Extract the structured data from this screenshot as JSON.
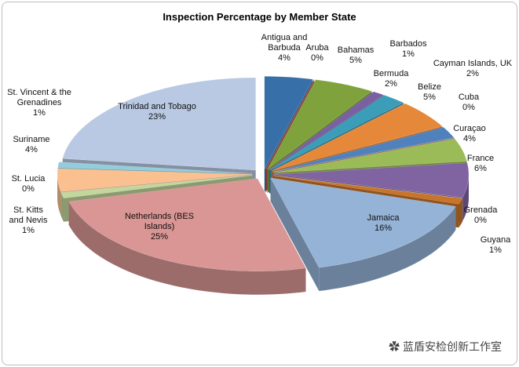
{
  "chart_data": {
    "type": "pie3d",
    "title": "Inspection Percentage by Member State",
    "categories": [
      "Antigua and Barbuda",
      "Aruba",
      "Bahamas",
      "Barbados",
      "Bermuda",
      "Belize",
      "Cayman Islands, UK",
      "Cuba",
      "Curaçao",
      "France",
      "Grenada",
      "Guyana",
      "Jamaica",
      "Netherlands (BES Islands)",
      "St. Kitts and Nevis",
      "St. Lucia",
      "Suriname",
      "St. Vincent & the Grenadines",
      "Trinidad and Tobago"
    ],
    "values": [
      4,
      0,
      5,
      1,
      2,
      5,
      2,
      0,
      4,
      6,
      0,
      1,
      16,
      25,
      1,
      0,
      4,
      1,
      23
    ],
    "value_labels": [
      "4%",
      "0%",
      "5%",
      "1%",
      "2%",
      "5%",
      "2%",
      "0%",
      "4%",
      "6%",
      "0%",
      "1%",
      "16%",
      "25%",
      "1%",
      "0%",
      "4%",
      "1%",
      "23%"
    ],
    "colors": [
      "#376fa8",
      "#c0504d",
      "#7fa23c",
      "#7a5fa3",
      "#3b9db8",
      "#e6883a",
      "#4f81bd",
      "#c0504d",
      "#9bbb59",
      "#8064a2",
      "#f79646",
      "#c8742a",
      "#95b3d7",
      "#d99694",
      "#c3d69b",
      "#b3a2c7",
      "#fac08f",
      "#93cddd",
      "#b9c9e3"
    ],
    "watermark": "蓝盾安检创新工作室"
  }
}
